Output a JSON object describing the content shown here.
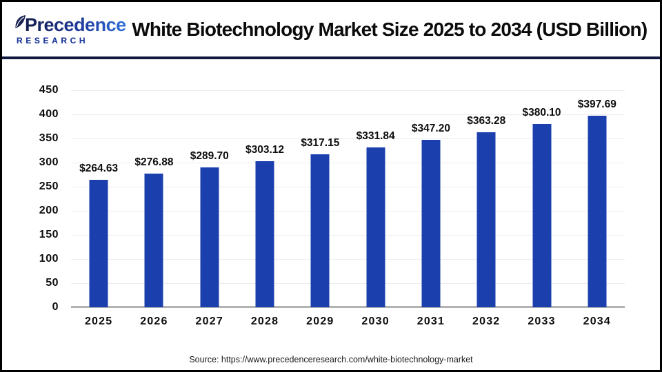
{
  "header": {
    "logo": {
      "line1": "Precedence",
      "line2": "RESEARCH"
    },
    "title": "White Biotechnology Market Size 2025 to 2034 (USD Billion)"
  },
  "footer": {
    "source": "Source: https://www.precedenceresearch.com/white-biotechnology-market"
  },
  "colors": {
    "bar": "#1b40ae",
    "separator": "#101840",
    "gridline": "#ececec",
    "axis_line": "#b3b3b3",
    "logo_dark": "#141d4d",
    "logo_blue": "#2f6fd8",
    "text": "#0d0d0d"
  },
  "chart_data": {
    "type": "bar",
    "title": "White Biotechnology Market Size 2025 to 2034 (USD Billion)",
    "unit": "USD Billion",
    "categories": [
      "2025",
      "2026",
      "2027",
      "2028",
      "2029",
      "2030",
      "2031",
      "2032",
      "2033",
      "2034"
    ],
    "values": [
      264.63,
      276.88,
      289.7,
      303.12,
      317.15,
      331.84,
      347.2,
      363.28,
      380.1,
      397.69
    ],
    "bar_labels": [
      "$264.63",
      "$276.88",
      "$289.70",
      "$303.12",
      "$317.15",
      "$331.84",
      "$347.20",
      "$363.28",
      "$380.10",
      "$397.69"
    ],
    "xlabel": "",
    "ylabel": "",
    "ylim": [
      0,
      450
    ],
    "yticks": [
      0,
      50,
      100,
      150,
      200,
      250,
      300,
      350,
      400,
      450
    ],
    "grid": true,
    "legend": false,
    "bar_color": "#1b40ae"
  }
}
